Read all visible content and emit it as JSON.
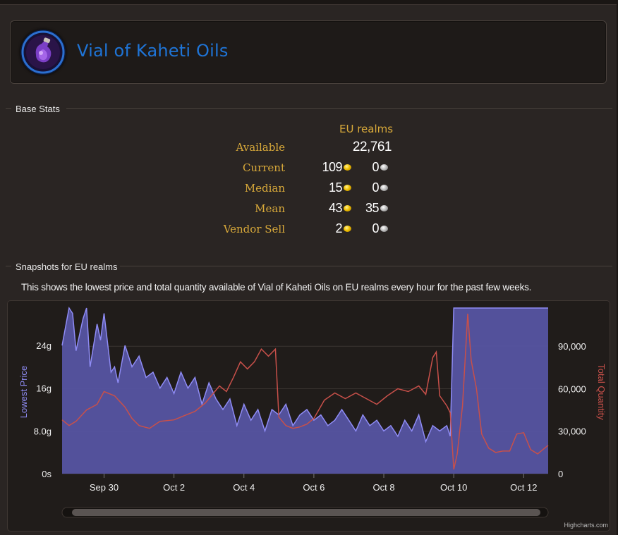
{
  "item": {
    "title": "Vial of Kaheti Oils",
    "icon": "vial-icon"
  },
  "base_stats": {
    "section_label": "Base Stats",
    "column_header": "EU realms",
    "rows": [
      {
        "label": "Available",
        "value": "22,761"
      },
      {
        "label": "Current",
        "gold": "109",
        "silver": "0"
      },
      {
        "label": "Median",
        "gold": "15",
        "silver": "0"
      },
      {
        "label": "Mean",
        "gold": "43",
        "silver": "35"
      },
      {
        "label": "Vendor Sell",
        "gold": "2",
        "silver": "0"
      }
    ]
  },
  "snapshots": {
    "section_label": "Snapshots for EU realms",
    "description": "This shows the lowest price and total quantity available of Vial of Kaheti Oils on EU realms every hour for the past few weeks."
  },
  "colors": {
    "price_series": "#8f8cf5",
    "price_fill": "#5654a2",
    "quantity_series": "#c8504a",
    "label_gold": "#d8a93a",
    "title_blue": "#1f74d6"
  },
  "chart_data": {
    "type": "line",
    "credits": "Highcharts.com",
    "x": {
      "tick_labels": [
        "Sep 30",
        "Oct 2",
        "Oct 4",
        "Oct 6",
        "Oct 8",
        "Oct 10",
        "Oct 12"
      ],
      "range_days": [
        28.8,
        42.7
      ],
      "tick_days": [
        30,
        32,
        34,
        36,
        38,
        40,
        42
      ]
    },
    "y_left": {
      "label": "Lowest Price",
      "unit": "gold",
      "ticks": [
        0,
        8,
        16,
        24
      ],
      "tick_labels": [
        "0s",
        "8.0g",
        "16g",
        "24g"
      ],
      "range": [
        0,
        31
      ]
    },
    "y_right": {
      "label": "Total Quantity",
      "ticks": [
        0,
        30000,
        60000,
        90000
      ],
      "tick_labels": [
        "0",
        "30,000",
        "60,000",
        "90,000"
      ],
      "range": [
        0,
        117000
      ]
    },
    "grid": true,
    "legend": "none",
    "series": [
      {
        "name": "Lowest Price",
        "axis": "left",
        "style": "area",
        "x": [
          28.8,
          29.0,
          29.1,
          29.2,
          29.4,
          29.5,
          29.6,
          29.8,
          29.9,
          30.0,
          30.2,
          30.3,
          30.4,
          30.6,
          30.8,
          31.0,
          31.2,
          31.4,
          31.6,
          31.8,
          32.0,
          32.2,
          32.4,
          32.6,
          32.8,
          33.0,
          33.2,
          33.4,
          33.6,
          33.8,
          34.0,
          34.2,
          34.4,
          34.6,
          34.8,
          35.0,
          35.2,
          35.4,
          35.6,
          35.8,
          36.0,
          36.2,
          36.4,
          36.6,
          36.8,
          37.0,
          37.2,
          37.4,
          37.6,
          37.8,
          38.0,
          38.2,
          38.4,
          38.6,
          38.8,
          39.0,
          39.2,
          39.4,
          39.6,
          39.8,
          39.9,
          40.0,
          40.1,
          40.3,
          40.6,
          41.0,
          41.5,
          42.0,
          42.7
        ],
        "y": [
          24,
          31,
          30,
          23,
          29,
          31,
          20,
          28,
          25,
          30,
          19,
          20,
          17,
          24,
          20,
          22,
          18,
          19,
          16,
          18,
          15,
          19,
          16,
          18,
          13,
          17,
          14,
          12,
          14,
          9,
          13,
          10,
          12,
          8,
          12,
          11,
          13,
          9,
          11,
          12,
          10,
          11,
          9,
          10,
          12,
          10,
          8,
          11,
          9,
          10,
          8,
          9,
          7,
          10,
          8,
          11,
          6,
          9,
          8,
          9,
          7,
          31,
          31,
          31,
          31,
          31,
          31,
          31,
          31
        ]
      },
      {
        "name": "Total Quantity",
        "axis": "right",
        "style": "line",
        "x": [
          28.8,
          29.0,
          29.2,
          29.5,
          29.8,
          30.0,
          30.3,
          30.6,
          30.8,
          31.0,
          31.3,
          31.6,
          32.0,
          32.3,
          32.6,
          32.9,
          33.1,
          33.3,
          33.5,
          33.7,
          33.9,
          34.1,
          34.3,
          34.5,
          34.7,
          34.9,
          35.0,
          35.2,
          35.4,
          35.6,
          35.8,
          36.0,
          36.3,
          36.6,
          36.9,
          37.2,
          37.5,
          37.8,
          38.1,
          38.4,
          38.7,
          39.0,
          39.2,
          39.4,
          39.5,
          39.6,
          39.8,
          39.9,
          40.0,
          40.1,
          40.25,
          40.4,
          40.5,
          40.65,
          40.8,
          41.0,
          41.2,
          41.4,
          41.6,
          41.8,
          42.0,
          42.2,
          42.4,
          42.6,
          42.7
        ],
        "y": [
          38000,
          34000,
          37000,
          45000,
          49000,
          58000,
          55000,
          47000,
          39000,
          34000,
          32000,
          37000,
          38000,
          41000,
          44000,
          50000,
          56000,
          62000,
          58000,
          68000,
          79000,
          74000,
          79000,
          88000,
          83000,
          88000,
          40000,
          34000,
          32000,
          33000,
          35000,
          39000,
          52000,
          57000,
          53000,
          57000,
          53000,
          49000,
          55000,
          60000,
          58000,
          62000,
          56000,
          82000,
          86000,
          55000,
          48000,
          43000,
          3000,
          14000,
          48000,
          113000,
          80000,
          60000,
          28000,
          18000,
          15000,
          16000,
          16000,
          28000,
          29000,
          17000,
          14000,
          18000,
          20000
        ]
      }
    ]
  }
}
